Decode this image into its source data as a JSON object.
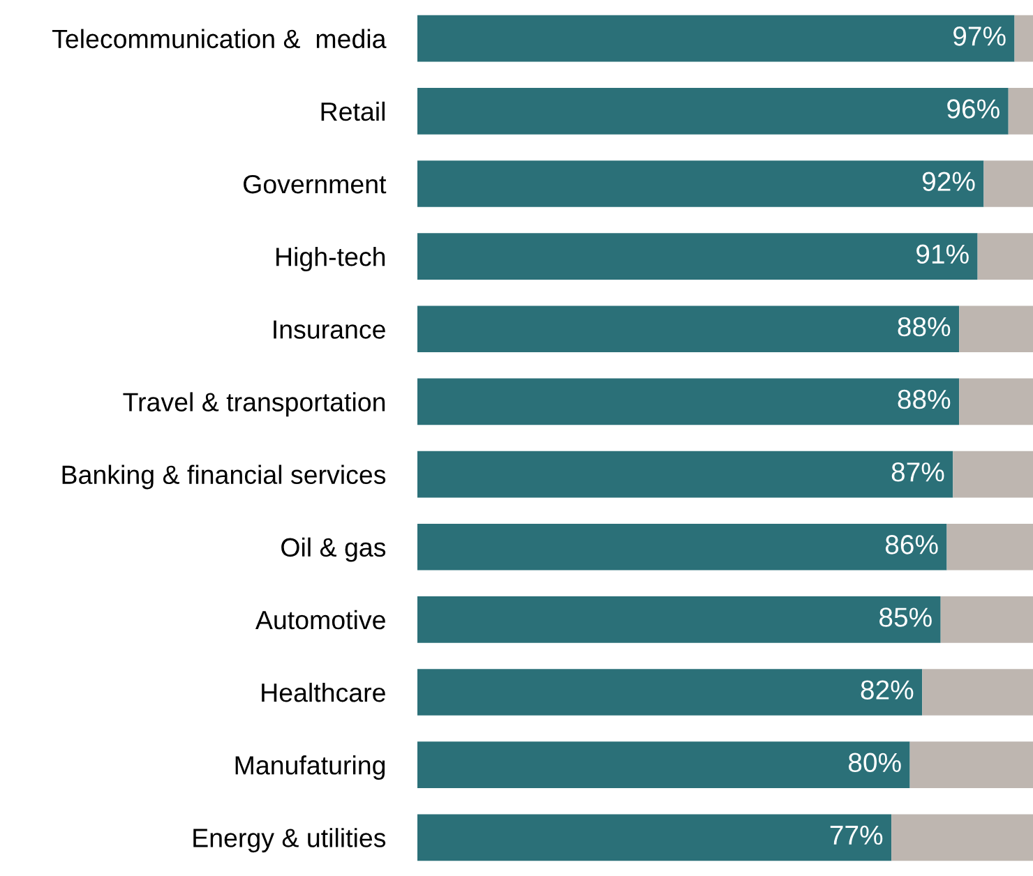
{
  "chart_data": {
    "type": "bar",
    "orientation": "horizontal",
    "stacked": true,
    "categories": [
      "Telecommunication &  media",
      "Retail",
      "Government",
      "High-tech",
      "Insurance",
      "Travel & transportation",
      "Banking & financial services",
      "Oil & gas",
      "Automotive",
      "Healthcare",
      "Manufaturing",
      "Energy & utilities"
    ],
    "series": [
      {
        "color": "#2b7078",
        "values": [
          97,
          96,
          92,
          91,
          88,
          88,
          87,
          86,
          85,
          82,
          80,
          77
        ],
        "value_labels": [
          "97%",
          "96%",
          "92%",
          "91%",
          "88%",
          "88%",
          "87%",
          "86%",
          "85%",
          "82%",
          "80%",
          "77%"
        ]
      },
      {
        "color": "#beb6b0",
        "values": [
          3,
          4,
          8,
          9,
          12,
          12,
          13,
          14,
          15,
          18,
          20,
          23
        ]
      }
    ],
    "xlim": [
      0,
      100
    ],
    "tick_labels": "y",
    "grid": false,
    "legend": false
  }
}
